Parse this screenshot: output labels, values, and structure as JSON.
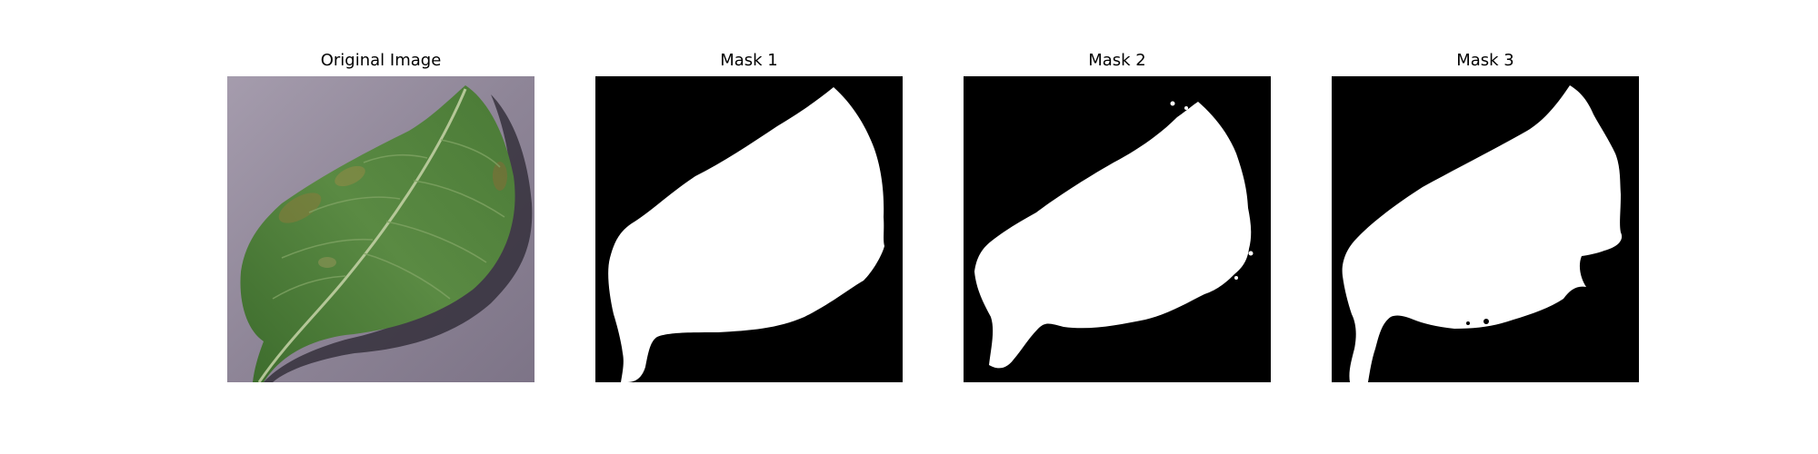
{
  "figure": {
    "panels": [
      {
        "title": "Original Image",
        "kind": "photo",
        "subject": "leaf"
      },
      {
        "title": "Mask 1",
        "kind": "mask"
      },
      {
        "title": "Mask 2",
        "kind": "mask"
      },
      {
        "title": "Mask 3",
        "kind": "mask"
      }
    ]
  },
  "colors": {
    "mask_background": "#000000",
    "mask_foreground": "#ffffff",
    "photo_background": "#8d8494",
    "leaf": "#4f7f3b"
  }
}
